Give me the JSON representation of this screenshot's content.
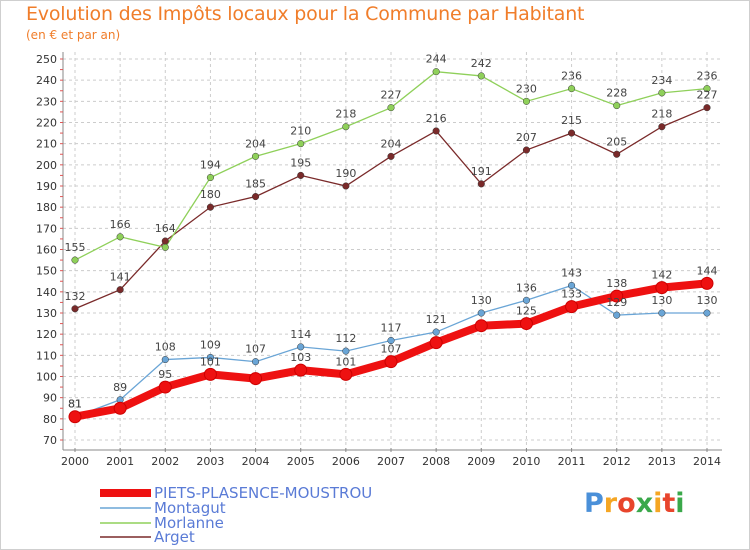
{
  "title": "Evolution des Impôts locaux pour la Commune par Habitant",
  "subtitle": "(en € et par an)",
  "logo": {
    "text": "Proxiti",
    "colors": [
      "#4a90d9",
      "#f5a623",
      "#e8452c",
      "#3aa84a",
      "#f5a623",
      "#e8452c",
      "#3aa84a"
    ]
  },
  "chart_data": {
    "type": "line",
    "title": "Evolution des Impôts locaux pour la Commune par Habitant",
    "subtitle": "(en € et par an)",
    "x": [
      "2000",
      "2001",
      "2002",
      "2003",
      "2004",
      "2005",
      "2006",
      "2007",
      "2008",
      "2009",
      "2010",
      "2011",
      "2012",
      "2013",
      "2014"
    ],
    "ylim": [
      70,
      250
    ],
    "yticks": [
      70,
      80,
      90,
      100,
      110,
      120,
      130,
      140,
      150,
      160,
      170,
      180,
      190,
      200,
      210,
      220,
      230,
      240,
      250
    ],
    "grid": true,
    "legend": "bottom-left",
    "series": [
      {
        "name": "PIETS-PLASENCE-MOUSTROU",
        "color": "#ee1111",
        "values": [
          81,
          85,
          95,
          101,
          99,
          103,
          101,
          107,
          116,
          124,
          125,
          133,
          138,
          142,
          144
        ],
        "labels": [
          "81",
          "",
          "95",
          "101",
          "",
          "103",
          "101",
          "107",
          "",
          "",
          "125",
          "133",
          "138",
          "142",
          "144"
        ]
      },
      {
        "name": "Montagut",
        "color": "#6aa5d6",
        "values": [
          81,
          89,
          108,
          109,
          107,
          114,
          112,
          117,
          121,
          130,
          136,
          143,
          129,
          130,
          130
        ],
        "labels": [
          "81",
          "89",
          "108",
          "109",
          "107",
          "114",
          "112",
          "117",
          "121",
          "130",
          "136",
          "143",
          "129",
          "130",
          "130"
        ]
      },
      {
        "name": "Morlanne",
        "color": "#8fd05a",
        "values": [
          155,
          166,
          161,
          194,
          204,
          210,
          218,
          227,
          244,
          242,
          230,
          236,
          228,
          234,
          236
        ],
        "labels": [
          "155",
          "166",
          "",
          "194",
          "204",
          "210",
          "218",
          "227",
          "244",
          "242",
          "230",
          "236",
          "228",
          "234",
          "236"
        ]
      },
      {
        "name": "Arget",
        "color": "#7a2a2a",
        "values": [
          132,
          141,
          164,
          180,
          185,
          195,
          190,
          204,
          216,
          191,
          207,
          215,
          205,
          218,
          227
        ],
        "labels": [
          "132",
          "141",
          "164",
          "180",
          "185",
          "195",
          "190",
          "204",
          "216",
          "191",
          "207",
          "215",
          "205",
          "218",
          "227"
        ]
      }
    ]
  }
}
